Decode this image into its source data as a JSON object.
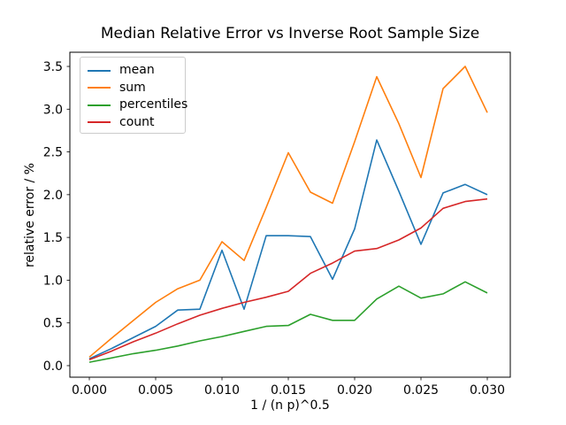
{
  "title": "Median Relative Error vs Inverse Root Sample Size",
  "chart_data": {
    "type": "line",
    "title": "Median Relative Error vs Inverse Root Sample Size",
    "xlabel": "1 / (n p)^0.5",
    "ylabel": "relative error / %",
    "grid": false,
    "legend_position": "upper left",
    "xlim": [
      -0.001467,
      0.031733
    ],
    "ylim": [
      -0.135,
      3.666
    ],
    "xticks": [
      0.0,
      0.005,
      0.01,
      0.015,
      0.02,
      0.025,
      0.03
    ],
    "xtick_labels": [
      "0.000",
      "0.005",
      "0.010",
      "0.015",
      "0.020",
      "0.025",
      "0.030"
    ],
    "yticks": [
      0.0,
      0.5,
      1.0,
      1.5,
      2.0,
      2.5,
      3.0,
      3.5
    ],
    "ytick_labels": [
      "0.0",
      "0.5",
      "1.0",
      "1.5",
      "2.0",
      "2.5",
      "3.0",
      "3.5"
    ],
    "x": [
      0.0,
      0.001667,
      0.003333,
      0.005,
      0.006667,
      0.008333,
      0.01,
      0.011667,
      0.013333,
      0.015,
      0.016667,
      0.018333,
      0.02,
      0.021667,
      0.023333,
      0.025,
      0.026667,
      0.028333,
      0.03
    ],
    "series": [
      {
        "name": "mean",
        "color": "#1f77b4",
        "values": [
          0.08,
          0.2,
          0.33,
          0.46,
          0.65,
          0.66,
          1.35,
          0.66,
          1.52,
          1.52,
          1.51,
          1.01,
          1.6,
          2.64,
          2.04,
          1.42,
          2.02,
          2.12,
          2.0
        ]
      },
      {
        "name": "sum",
        "color": "#ff7f0e",
        "values": [
          0.1,
          0.32,
          0.53,
          0.74,
          0.9,
          1.0,
          1.45,
          1.23,
          1.85,
          2.49,
          2.03,
          1.9,
          2.62,
          3.38,
          2.83,
          2.2,
          3.24,
          3.5,
          2.96
        ]
      },
      {
        "name": "percentiles",
        "color": "#2ca02c",
        "values": [
          0.04,
          0.09,
          0.14,
          0.18,
          0.23,
          0.29,
          0.34,
          0.4,
          0.46,
          0.47,
          0.6,
          0.53,
          0.53,
          0.78,
          0.93,
          0.79,
          0.84,
          0.98,
          0.85
        ]
      },
      {
        "name": "count",
        "color": "#d62728",
        "values": [
          0.07,
          0.17,
          0.28,
          0.38,
          0.49,
          0.59,
          0.67,
          0.74,
          0.8,
          0.87,
          1.08,
          1.2,
          1.34,
          1.37,
          1.47,
          1.61,
          1.84,
          1.92,
          1.95
        ]
      }
    ]
  }
}
